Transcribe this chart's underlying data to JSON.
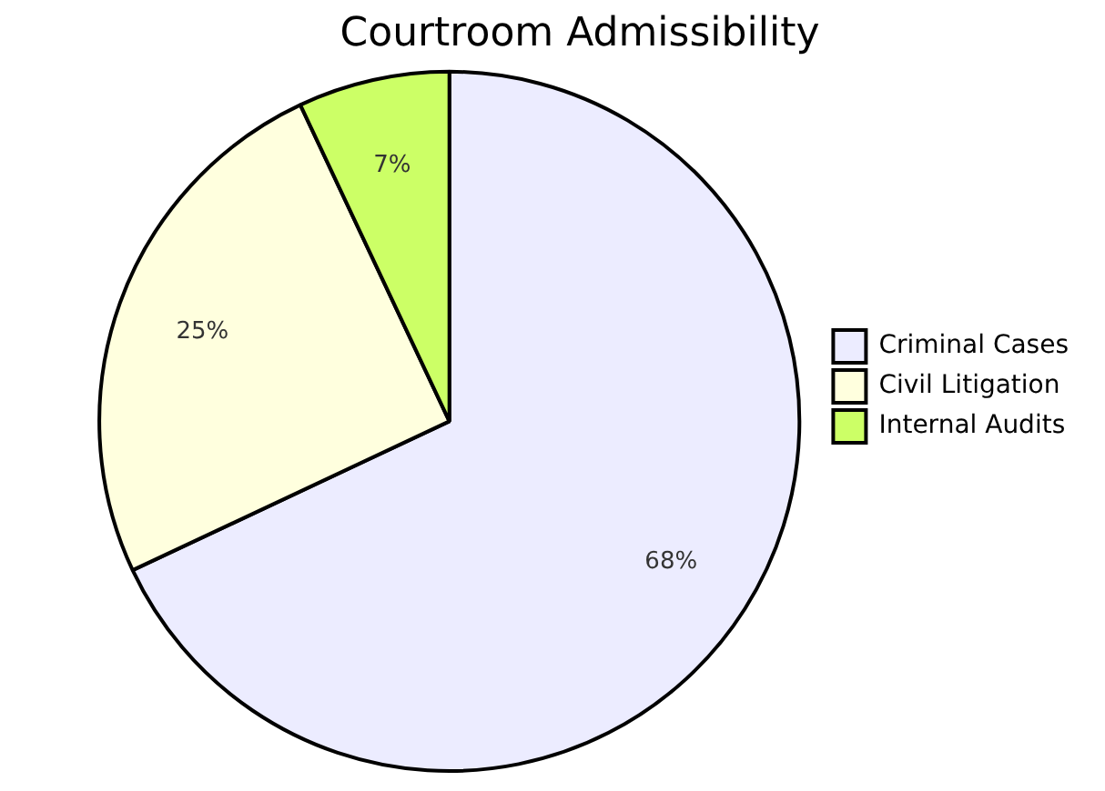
{
  "chart_data": {
    "type": "pie",
    "title": "Courtroom Admissibility",
    "categories": [
      "Criminal Cases",
      "Civil Litigation",
      "Internal Audits"
    ],
    "values": [
      68,
      25,
      7
    ],
    "value_labels": [
      "68%",
      "25%",
      "7%"
    ],
    "colors": [
      "#ececff",
      "#ffffde",
      "#ccff66"
    ],
    "legend": "right"
  }
}
